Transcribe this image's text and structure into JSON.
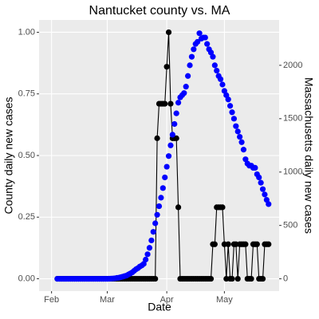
{
  "chart_data": {
    "type": "line",
    "title": "Nantucket county vs. MA",
    "x_label": "Date",
    "y_label": "County daily new cases",
    "y2_label": "Massachusetts daily new cases",
    "y2_color": "#0000cd",
    "grid": true,
    "xlim": [
      -5.5,
      119.5
    ],
    "xticks": [
      {
        "value": 1,
        "label": "Feb"
      },
      {
        "value": 30,
        "label": "Mar"
      },
      {
        "value": 61,
        "label": "Apr"
      },
      {
        "value": 91,
        "label": "May"
      }
    ],
    "ylim": [
      -0.05,
      1.05
    ],
    "yticks": [
      {
        "value": 0,
        "label": "0.00"
      },
      {
        "value": 0.25,
        "label": "0.25"
      },
      {
        "value": 0.5,
        "label": "0.50"
      },
      {
        "value": 0.75,
        "label": "0.75"
      },
      {
        "value": 1,
        "label": "1.00"
      }
    ],
    "y2lim": [
      -115,
      2425
    ],
    "y2ticks": [
      0,
      500,
      1000,
      1500,
      2000
    ],
    "x": [
      4,
      5,
      6,
      7,
      8,
      9,
      10,
      11,
      12,
      13,
      14,
      15,
      16,
      17,
      18,
      19,
      20,
      21,
      22,
      23,
      24,
      25,
      26,
      27,
      28,
      29,
      30,
      31,
      32,
      33,
      34,
      35,
      36,
      37,
      38,
      39,
      40,
      41,
      42,
      43,
      44,
      45,
      46,
      47,
      48,
      49,
      50,
      51,
      52,
      53,
      54,
      55,
      56,
      57,
      58,
      59,
      60,
      61,
      62,
      63,
      64,
      65,
      66,
      67,
      68,
      69,
      70,
      71,
      72,
      73,
      74,
      75,
      76,
      77,
      78,
      79,
      80,
      81,
      82,
      83,
      84,
      85,
      86,
      87,
      88,
      89,
      90,
      91,
      92,
      93,
      94,
      95,
      96,
      97,
      98,
      99,
      100,
      101,
      102,
      103,
      104,
      105,
      106,
      107,
      108,
      109,
      110,
      111,
      112,
      113,
      114
    ],
    "series": [
      {
        "color": "#000000",
        "connect": true,
        "values": [
          0,
          0,
          0,
          0,
          0,
          0,
          0,
          0,
          0,
          0,
          0,
          0,
          0,
          0,
          0,
          0,
          0,
          0,
          0,
          0,
          0,
          0,
          0,
          0,
          0,
          0,
          0,
          0,
          0,
          0,
          0,
          0,
          0,
          0,
          0,
          0,
          0,
          0,
          0,
          0,
          0,
          0,
          0,
          0,
          0,
          0,
          0,
          0,
          0,
          0,
          0,
          0,
          0.57,
          0.71,
          0.71,
          0.71,
          0.71,
          0.86,
          1,
          0.71,
          0.57,
          0.57,
          0.57,
          0.29,
          0,
          0,
          0,
          0,
          0,
          0,
          0,
          0,
          0,
          0,
          0,
          0,
          0,
          0,
          0,
          0,
          0,
          0.14,
          0.14,
          0.29,
          0.29,
          0.29,
          0.29,
          0.14,
          0,
          0.14,
          0,
          0,
          0.14,
          0.14,
          0,
          0.14,
          0.14,
          0.14,
          0.14,
          0,
          0,
          0,
          0.14,
          0.14,
          0.14,
          0,
          0,
          0,
          0.14,
          0.14,
          0.14
        ]
      },
      {
        "color": "#0000ff",
        "connect": false,
        "axis": "y2",
        "values": [
          0,
          0,
          0,
          0,
          0,
          0,
          0,
          0,
          0,
          0,
          0,
          0,
          0,
          0,
          0,
          0,
          0,
          0,
          0,
          0,
          0,
          0,
          0,
          0,
          0,
          0,
          0,
          1,
          2,
          3,
          5,
          8,
          10,
          15,
          20,
          25,
          30,
          40,
          50,
          60,
          75,
          90,
          100,
          115,
          125,
          140,
          180,
          230,
          290,
          360,
          440,
          520,
          600,
          680,
          760,
          850,
          950,
          1050,
          1150,
          1250,
          1350,
          1450,
          1550,
          1650,
          1700,
          1720,
          1740,
          1800,
          1900,
          2000,
          2080,
          2150,
          2200,
          2220,
          2300,
          2250,
          2260,
          2260,
          2200,
          2150,
          2120,
          2080,
          2000,
          1950,
          1900,
          1870,
          1820,
          1760,
          1720,
          1680,
          1620,
          1560,
          1500,
          1430,
          1380,
          1330,
          1280,
          1210,
          1120,
          1080,
          1060,
          1060,
          1040,
          1040,
          980,
          950,
          900,
          840,
          790,
          740,
          700
        ]
      }
    ]
  }
}
